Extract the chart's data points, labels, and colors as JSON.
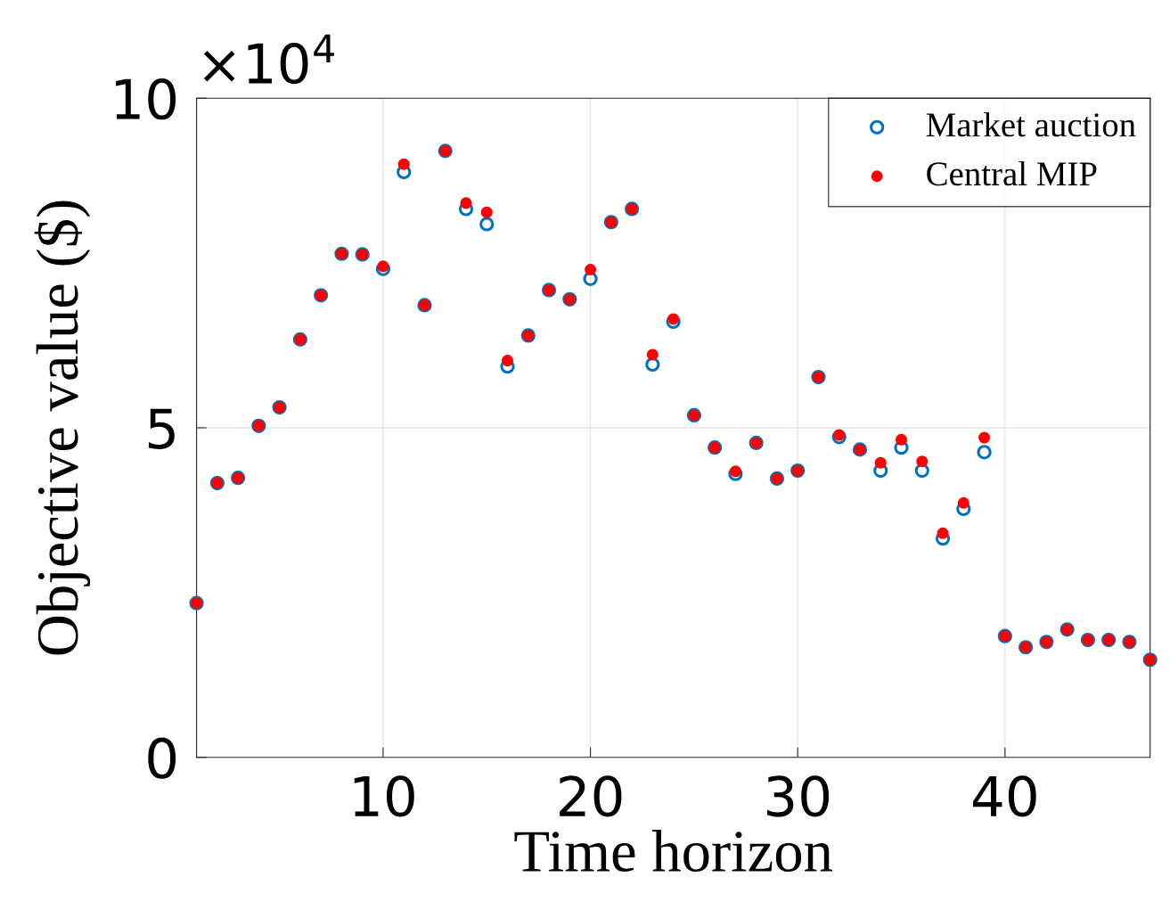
{
  "chart_data": {
    "type": "scatter",
    "xlabel": "Time horizon",
    "ylabel": "Objective value ($)",
    "annotations": [
      "×10$^{4}$"
    ],
    "x": [
      1,
      2,
      3,
      4,
      5,
      6,
      7,
      8,
      9,
      10,
      11,
      12,
      13,
      14,
      15,
      16,
      17,
      18,
      19,
      20,
      21,
      22,
      23,
      24,
      25,
      26,
      27,
      28,
      29,
      30,
      31,
      32,
      33,
      34,
      35,
      36,
      37,
      38,
      39,
      40,
      41,
      42,
      43,
      44,
      45,
      46,
      47
    ],
    "series": [
      {
        "name": "Market auction",
        "color": "#0072bd",
        "marker": "circle",
        "values": [
          2.34,
          4.16,
          4.24,
          5.03,
          5.31,
          6.34,
          7.01,
          7.64,
          7.63,
          7.41,
          8.88,
          6.86,
          9.2,
          8.32,
          8.09,
          5.93,
          6.4,
          7.09,
          6.95,
          7.26,
          8.12,
          8.32,
          5.96,
          6.61,
          5.19,
          4.7,
          4.3,
          4.77,
          4.23,
          4.35,
          5.77,
          4.86,
          4.67,
          4.35,
          4.7,
          4.35,
          3.32,
          3.77,
          4.63,
          1.84,
          1.67,
          1.75,
          1.94,
          1.78,
          1.78,
          1.75,
          1.48
        ]
      },
      {
        "name": "Central MIP",
        "color": "#ff0000",
        "marker": "circle",
        "values": [
          2.34,
          4.16,
          4.24,
          5.03,
          5.31,
          6.34,
          7.01,
          7.64,
          7.63,
          7.45,
          9.0,
          6.86,
          9.2,
          8.41,
          8.27,
          6.02,
          6.4,
          7.09,
          6.95,
          7.4,
          8.12,
          8.32,
          6.11,
          6.65,
          5.19,
          4.7,
          4.34,
          4.77,
          4.23,
          4.35,
          5.77,
          4.89,
          4.67,
          4.47,
          4.82,
          4.49,
          3.4,
          3.86,
          4.85,
          1.84,
          1.67,
          1.75,
          1.94,
          1.78,
          1.78,
          1.75,
          1.48
        ]
      }
    ],
    "xlim": [
      1,
      47
    ],
    "xticks": [
      10,
      20,
      30,
      40
    ],
    "ylim": [
      0,
      10
    ],
    "yticks": [
      0,
      5,
      10
    ],
    "grid": true,
    "legend": "top right"
  }
}
